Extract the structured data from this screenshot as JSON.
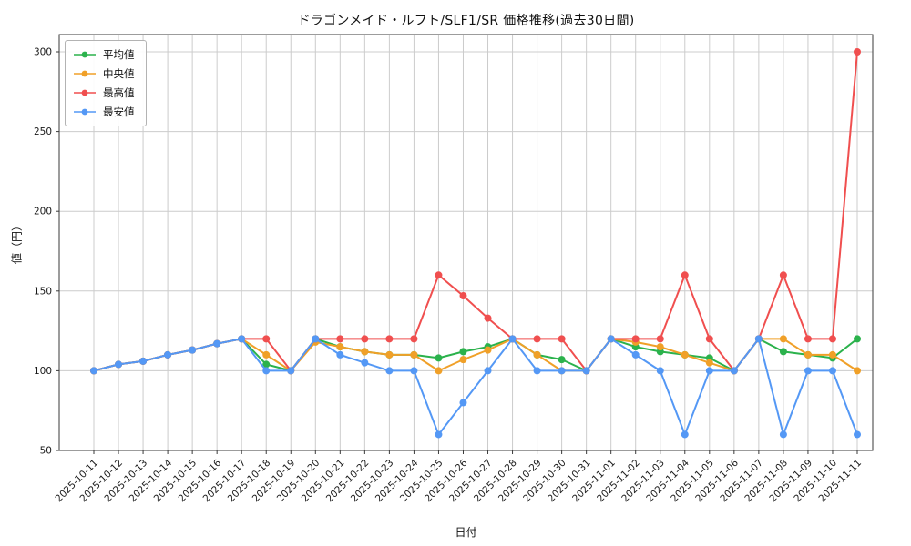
{
  "chart_data": {
    "type": "line",
    "title": "ドラゴンメイド・ルフト/SLF1/SR 価格推移(過去30日間)",
    "xlabel": "日付",
    "ylabel": "値（円）",
    "ylim": [
      50,
      300
    ],
    "yticks": [
      50,
      100,
      150,
      200,
      250,
      300
    ],
    "grid": true,
    "legend_position": "upper left",
    "background_color": "#ffffff",
    "grid_color": "#cccccc",
    "categories": [
      "2025-10-11",
      "2025-10-12",
      "2025-10-13",
      "2025-10-14",
      "2025-10-15",
      "2025-10-16",
      "2025-10-17",
      "2025-10-18",
      "2025-10-19",
      "2025-10-20",
      "2025-10-21",
      "2025-10-22",
      "2025-10-23",
      "2025-10-24",
      "2025-10-25",
      "2025-10-26",
      "2025-10-27",
      "2025-10-28",
      "2025-10-29",
      "2025-10-30",
      "2025-10-31",
      "2025-11-01",
      "2025-11-02",
      "2025-11-03",
      "2025-11-04",
      "2025-11-05",
      "2025-11-06",
      "2025-11-07",
      "2025-11-08",
      "2025-11-09",
      "2025-11-10",
      "2025-11-11"
    ],
    "series": [
      {
        "key": "average",
        "name": "平均値",
        "color": "#2bb24c",
        "values": [
          100,
          104,
          106,
          110,
          113,
          117,
          120,
          104,
          100,
          120,
          115,
          112,
          110,
          110,
          108,
          112,
          115,
          120,
          110,
          107,
          100,
          120,
          115,
          112,
          110,
          108,
          100,
          120,
          112,
          110,
          108,
          120
        ]
      },
      {
        "key": "median",
        "name": "中央値",
        "color": "#f0a028",
        "values": [
          100,
          104,
          106,
          110,
          113,
          117,
          120,
          110,
          100,
          118,
          115,
          112,
          110,
          110,
          100,
          107,
          113,
          120,
          110,
          100,
          100,
          120,
          118,
          115,
          110,
          105,
          100,
          120,
          120,
          110,
          110,
          100
        ]
      },
      {
        "key": "highest",
        "name": "最高値",
        "color": "#f04f4f",
        "values": [
          100,
          104,
          106,
          110,
          113,
          117,
          120,
          120,
          100,
          120,
          120,
          120,
          120,
          120,
          160,
          147,
          133,
          120,
          120,
          120,
          100,
          120,
          120,
          120,
          160,
          120,
          100,
          120,
          160,
          120,
          120,
          300
        ]
      },
      {
        "key": "lowest",
        "name": "最安値",
        "color": "#5498f5",
        "values": [
          100,
          104,
          106,
          110,
          113,
          117,
          120,
          100,
          100,
          120,
          110,
          105,
          100,
          100,
          60,
          80,
          100,
          120,
          100,
          100,
          100,
          120,
          110,
          100,
          60,
          100,
          100,
          120,
          60,
          100,
          100,
          60
        ]
      }
    ]
  }
}
